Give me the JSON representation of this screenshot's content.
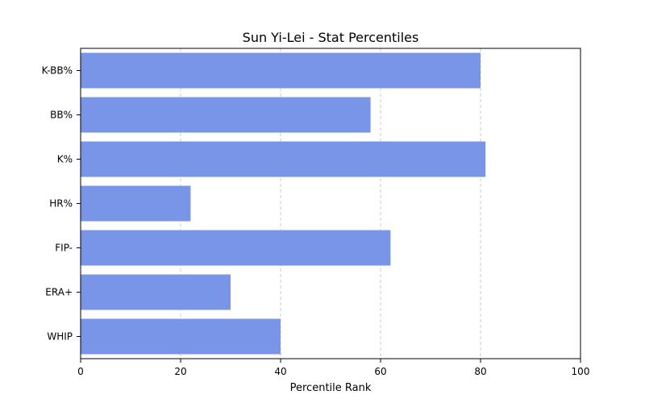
{
  "chart_data": {
    "type": "bar",
    "orientation": "horizontal",
    "title": "Sun Yi-Lei - Stat Percentiles",
    "xlabel": "Percentile Rank",
    "ylabel": "",
    "categories": [
      "K-BB%",
      "BB%",
      "K%",
      "HR%",
      "FIP-",
      "ERA+",
      "WHIP"
    ],
    "values": [
      80,
      58,
      81,
      22,
      62,
      30,
      40
    ],
    "xlim": [
      0,
      100
    ],
    "xticks": [
      0,
      20,
      40,
      60,
      80,
      100
    ],
    "grid": "x-dashed",
    "legend": "none",
    "colors": {
      "bar": "#7895e8",
      "grid": "#c8c8c8",
      "axis": "#000000"
    }
  }
}
